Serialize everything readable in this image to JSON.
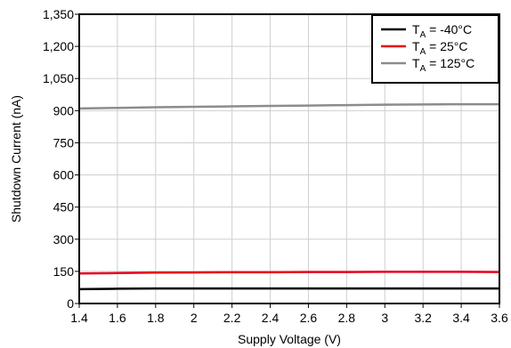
{
  "chart_data": {
    "type": "line",
    "xlabel": "Supply Voltage (V)",
    "ylabel": "Shutdown Current (nA)",
    "xlim": [
      1.4,
      3.6
    ],
    "ylim": [
      0,
      1350
    ],
    "grid": true,
    "legend_position": "top-right",
    "x_ticks": [
      "1.4",
      "1.6",
      "1.8",
      "2",
      "2.2",
      "2.4",
      "2.6",
      "2.8",
      "3",
      "3.2",
      "3.4",
      "3.6"
    ],
    "y_ticks": [
      "0",
      "150",
      "300",
      "450",
      "600",
      "750",
      "900",
      "1,050",
      "1,200",
      "1,350"
    ],
    "series": [
      {
        "name_main": "T",
        "name_sub": "A",
        "name_rest": " = -40°C",
        "color": "#000000",
        "x": [
          1.4,
          1.6,
          1.8,
          2.0,
          2.2,
          2.4,
          2.6,
          2.8,
          3.0,
          3.2,
          3.4,
          3.6
        ],
        "y": [
          67,
          69,
          70,
          70,
          70,
          70,
          70,
          70,
          70,
          70,
          70,
          70
        ]
      },
      {
        "name_main": "T",
        "name_sub": "A",
        "name_rest": " = 25°C",
        "color": "#e8001c",
        "x": [
          1.4,
          1.6,
          1.8,
          2.0,
          2.2,
          2.4,
          2.6,
          2.8,
          3.0,
          3.2,
          3.4,
          3.6
        ],
        "y": [
          140,
          142,
          144,
          145,
          146,
          146,
          147,
          147,
          148,
          148,
          148,
          147
        ]
      },
      {
        "name_main": "T",
        "name_sub": "A",
        "name_rest": " = 125°C",
        "color": "#8c8c8c",
        "x": [
          1.4,
          1.6,
          1.8,
          2.0,
          2.2,
          2.4,
          2.6,
          2.8,
          3.0,
          3.2,
          3.4,
          3.6
        ],
        "y": [
          910,
          913,
          916,
          918,
          920,
          922,
          924,
          926,
          928,
          929,
          930,
          930
        ]
      }
    ]
  }
}
